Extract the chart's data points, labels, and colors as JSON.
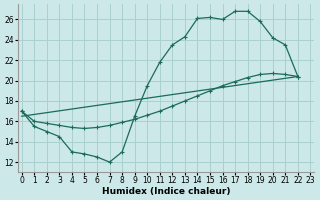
{
  "xlabel": "Humidex (Indice chaleur)",
  "bg_color": "#cce8e8",
  "grid_color": "#aad0d0",
  "line_color": "#1a6b5a",
  "xlim": [
    -0.3,
    23.3
  ],
  "ylim": [
    11.0,
    27.5
  ],
  "xticks": [
    0,
    1,
    2,
    3,
    4,
    5,
    6,
    7,
    8,
    9,
    10,
    11,
    12,
    13,
    14,
    15,
    16,
    17,
    18,
    19,
    20,
    21,
    22,
    23
  ],
  "yticks": [
    12,
    14,
    16,
    18,
    20,
    22,
    24,
    26
  ],
  "curve1_x": [
    0,
    1,
    2,
    3,
    4,
    5,
    6,
    7,
    8,
    9,
    10,
    11,
    12,
    13,
    14,
    15,
    16,
    17,
    18,
    19,
    20,
    21,
    22
  ],
  "curve1_y": [
    17.0,
    15.5,
    15.0,
    14.5,
    13.0,
    12.8,
    12.5,
    12.0,
    13.0,
    16.5,
    19.5,
    21.8,
    23.5,
    24.3,
    26.1,
    26.2,
    26.0,
    26.8,
    26.8,
    25.8,
    24.2,
    23.5,
    20.4
  ],
  "curve2_x": [
    0,
    1,
    2,
    3,
    4,
    5,
    6,
    7,
    8,
    9,
    10,
    11,
    12,
    13,
    14,
    15,
    16,
    17,
    18,
    19,
    20,
    21,
    22
  ],
  "curve2_y": [
    17.0,
    16.0,
    15.8,
    15.6,
    15.4,
    15.3,
    15.4,
    15.6,
    15.9,
    16.2,
    16.6,
    17.0,
    17.5,
    18.0,
    18.5,
    19.0,
    19.5,
    19.9,
    20.3,
    20.6,
    20.7,
    20.6,
    20.4
  ],
  "curve3_x": [
    0,
    22
  ],
  "curve3_y": [
    16.5,
    20.4
  ]
}
